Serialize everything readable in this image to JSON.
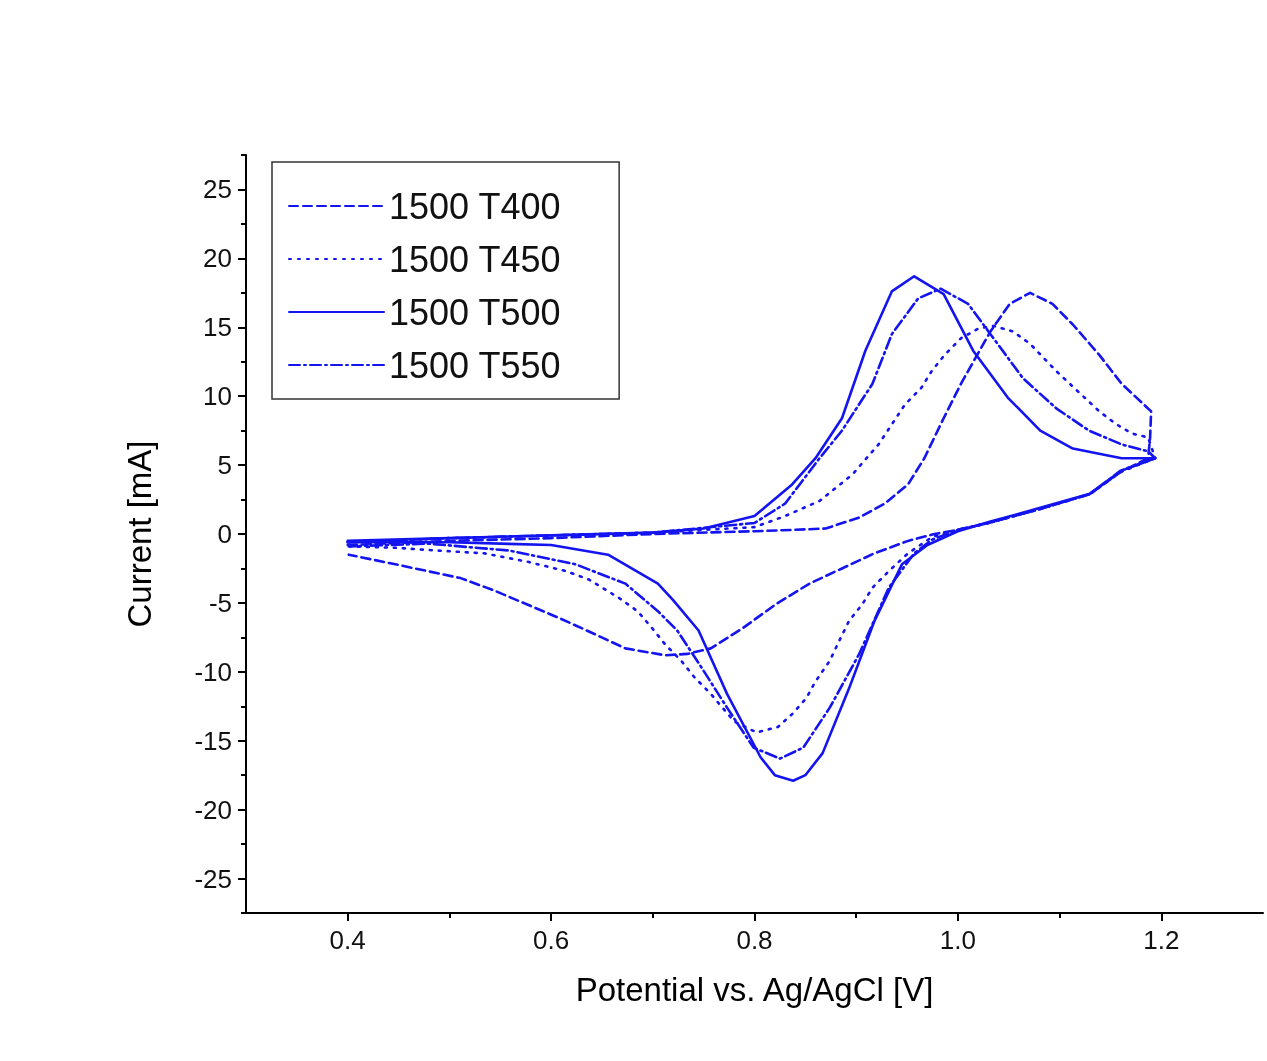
{
  "chart_data": {
    "type": "line",
    "xlabel": "Potential vs. Ag/AgCl [V]",
    "ylabel": "Current [mA]",
    "xlim": [
      0.3,
      1.3
    ],
    "ylim": [
      -27.5,
      27.5
    ],
    "xticks": [
      0.4,
      {
        "value": 0.5,
        "label": null
      },
      0.6,
      {
        "value": 0.7,
        "label": null
      },
      0.8,
      {
        "value": 0.9,
        "label": null
      },
      {
        "value": 1,
        "label": "1.0"
      },
      {
        "value": 1.1,
        "label": null
      },
      1.2
    ],
    "yticks": [
      {
        "value": -27.5,
        "label": null
      },
      -25,
      {
        "value": -22.5,
        "label": null
      },
      -20,
      {
        "value": -17.5,
        "label": null
      },
      -15,
      {
        "value": -12.5,
        "label": null
      },
      -10,
      {
        "value": -7.5,
        "label": null
      },
      -5,
      {
        "value": -2.5,
        "label": null
      },
      0,
      {
        "value": 2.5,
        "label": null
      },
      5,
      {
        "value": 7.5,
        "label": null
      },
      10,
      {
        "value": 12.5,
        "label": null
      },
      15,
      {
        "value": 17.5,
        "label": null
      },
      20,
      {
        "value": 22.5,
        "label": null
      },
      25,
      {
        "value": 27.5,
        "label": null
      }
    ],
    "grid": false,
    "legend": "top left",
    "marker": "none",
    "series": [
      {
        "name": "1500 T400",
        "color": "#1414f0",
        "line_style": "dashed",
        "x": [
          0.4,
          0.5,
          0.6,
          0.7,
          0.8,
          0.838,
          0.87,
          0.903,
          0.928,
          0.951,
          0.967,
          0.986,
          1.003,
          1.019,
          1.032,
          1.051,
          1.071,
          1.093,
          1.113,
          1.139,
          1.161,
          1.19,
          1.189,
          1.187,
          1.16,
          1.13,
          1.08,
          1.03,
          1.0,
          0.977,
          0.951,
          0.918,
          0.886,
          0.854,
          0.821,
          0.789,
          0.757,
          0.734,
          0.712,
          0.673,
          0.641,
          0.608,
          0.576,
          0.544,
          0.511,
          0.479,
          0.447,
          0.414,
          0.401
        ],
        "values": [
          -0.8,
          -0.5,
          -0.3,
          0,
          0.2,
          0.3,
          0.4,
          1.2,
          2.2,
          3.6,
          5.5,
          8.4,
          10.9,
          13,
          14.7,
          16.7,
          17.5,
          16.7,
          15.2,
          13,
          10.9,
          8.9,
          7,
          5.5,
          4.5,
          2.9,
          1.8,
          0.8,
          0.3,
          0,
          -0.5,
          -1.4,
          -2.5,
          -3.6,
          -5.1,
          -6.8,
          -8.3,
          -8.7,
          -8.8,
          -8.3,
          -7.2,
          -6.1,
          -5.1,
          -4.1,
          -3.2,
          -2.7,
          -2.2,
          -1.7,
          -1.5
        ]
      },
      {
        "name": "1500 T450",
        "color": "#1414f0",
        "line_style": "dotted",
        "x": [
          0.4,
          0.5,
          0.6,
          0.7,
          0.8,
          0.83,
          0.864,
          0.896,
          0.922,
          0.948,
          0.964,
          0.974,
          0.987,
          1.003,
          1.02,
          1.035,
          1.054,
          1.071,
          1.097,
          1.11,
          1.139,
          1.155,
          1.171,
          1.187,
          1.194,
          1.16,
          1.13,
          1.08,
          1.03,
          1.0,
          0.975,
          0.951,
          0.932,
          0.916,
          0.906,
          0.893,
          0.883,
          0.874,
          0.86,
          0.851,
          0.838,
          0.823,
          0.802,
          0.78,
          0.757,
          0.741,
          0.728,
          0.712,
          0.699,
          0.685,
          0.666,
          0.637,
          0.615,
          0.576,
          0.534,
          0.488,
          0.447,
          0.4
        ],
        "values": [
          -0.6,
          -0.3,
          -0.1,
          0.1,
          0.5,
          1.3,
          2.4,
          4.3,
          6.5,
          9.4,
          10.6,
          11.8,
          13,
          14.2,
          14.9,
          15.1,
          14.7,
          13.8,
          11.8,
          10.9,
          8.9,
          8,
          7.3,
          7,
          5.5,
          4.5,
          2.9,
          1.8,
          0.8,
          0.3,
          -0.2,
          -1.4,
          -2.7,
          -3.9,
          -5.1,
          -6.3,
          -7.8,
          -9.2,
          -10.7,
          -11.9,
          -13,
          -14,
          -14.4,
          -13.6,
          -11.6,
          -10.4,
          -9.2,
          -8,
          -6.8,
          -5.6,
          -4.6,
          -3.3,
          -2.7,
          -2,
          -1.4,
          -1.2,
          -1,
          -0.9
        ]
      },
      {
        "name": "1500 T500",
        "color": "#1414f0",
        "line_style": "solid",
        "x": [
          0.4,
          0.5,
          0.6,
          0.7,
          0.75,
          0.8,
          0.837,
          0.86,
          0.886,
          0.909,
          0.935,
          0.957,
          0.986,
          1.015,
          1.049,
          1.081,
          1.113,
          1.161,
          1.194,
          1.161,
          1.129,
          1.081,
          1.032,
          1.0,
          0.97,
          0.945,
          0.918,
          0.893,
          0.867,
          0.85,
          0.838,
          0.82,
          0.806,
          0.773,
          0.745,
          0.72,
          0.705,
          0.656,
          0.6,
          0.5,
          0.4
        ],
        "values": [
          -0.5,
          -0.3,
          -0.1,
          0.1,
          0.4,
          1.3,
          3.6,
          5.5,
          8.4,
          13.3,
          17.6,
          18.7,
          17.4,
          13.3,
          9.9,
          7.5,
          6.2,
          5.5,
          5.5,
          4.6,
          2.9,
          1.9,
          0.9,
          0.2,
          -0.8,
          -2.2,
          -6.3,
          -11.2,
          -15.9,
          -17.5,
          -17.9,
          -17.5,
          -16.2,
          -11.6,
          -7,
          -4.8,
          -3.6,
          -1.5,
          -0.8,
          -0.6,
          -0.6
        ]
      },
      {
        "name": "1500 T550",
        "color": "#1414f0",
        "line_style": "dashdot",
        "x": [
          0.4,
          0.5,
          0.6,
          0.7,
          0.8,
          0.83,
          0.864,
          0.886,
          0.916,
          0.935,
          0.961,
          0.983,
          1.01,
          1.032,
          1.064,
          1.097,
          1.129,
          1.161,
          1.187,
          1.194,
          1.16,
          1.13,
          1.08,
          1.03,
          1.0,
          0.975,
          0.957,
          0.932,
          0.903,
          0.874,
          0.848,
          0.825,
          0.799,
          0.773,
          0.748,
          0.724,
          0.705,
          0.673,
          0.624,
          0.559,
          0.479,
          0.4
        ],
        "values": [
          -0.6,
          -0.3,
          -0.1,
          0.1,
          0.8,
          2.2,
          5.5,
          7.5,
          10.9,
          14.5,
          17.1,
          17.8,
          16.7,
          14.5,
          11.3,
          9.1,
          7.5,
          6.5,
          6,
          5.5,
          4.6,
          2.9,
          1.8,
          0.8,
          0.3,
          -0.4,
          -1.4,
          -3.9,
          -8.7,
          -12.6,
          -15.5,
          -16.3,
          -15.5,
          -12.6,
          -9.7,
          -7,
          -5.6,
          -3.6,
          -2.2,
          -1.2,
          -0.7,
          -0.9
        ]
      }
    ]
  }
}
